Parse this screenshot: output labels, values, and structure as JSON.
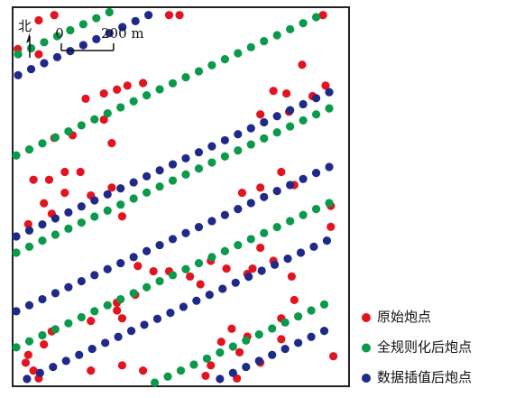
{
  "chart_data": {
    "type": "scatter",
    "north_label": "北",
    "scale_bar_ticks": [
      0,
      {
        "value": 200,
        "label": "200 m"
      }
    ],
    "xlim": [
      0,
      1290
    ],
    "ylim": [
      0,
      1450
    ],
    "series": [
      {
        "name": "原始炮点",
        "color": "#e3141f",
        "points": [
          [
            100,
            1400
          ],
          [
            160,
            1420
          ],
          [
            600,
            1420
          ],
          [
            640,
            1420
          ],
          [
            1190,
            1420
          ],
          [
            20,
            1290
          ],
          [
            100,
            1270
          ],
          [
            280,
            1100
          ],
          [
            350,
            1120
          ],
          [
            400,
            1135
          ],
          [
            440,
            1150
          ],
          [
            500,
            1160
          ],
          [
            160,
            950
          ],
          [
            230,
            960
          ],
          [
            380,
            930
          ],
          [
            350,
            1020
          ],
          [
            1000,
            1130
          ],
          [
            1050,
            1120
          ],
          [
            1150,
            1110
          ],
          [
            1200,
            1150
          ],
          [
            1110,
            1230
          ],
          [
            950,
            1040
          ],
          [
            1060,
            1050
          ],
          [
            80,
            790
          ],
          [
            140,
            790
          ],
          [
            200,
            820
          ],
          [
            260,
            820
          ],
          [
            120,
            700
          ],
          [
            200,
            740
          ],
          [
            300,
            730
          ],
          [
            380,
            760
          ],
          [
            60,
            620
          ],
          [
            150,
            660
          ],
          [
            420,
            650
          ],
          [
            880,
            740
          ],
          [
            950,
            760
          ],
          [
            1030,
            820
          ],
          [
            1080,
            770
          ],
          [
            1220,
            690
          ],
          [
            1220,
            610
          ],
          [
            950,
            530
          ],
          [
            1000,
            480
          ],
          [
            920,
            450
          ],
          [
            900,
            430
          ],
          [
            820,
            450
          ],
          [
            760,
            480
          ],
          [
            720,
            390
          ],
          [
            680,
            420
          ],
          [
            600,
            440
          ],
          [
            540,
            440
          ],
          [
            480,
            460
          ],
          [
            470,
            350
          ],
          [
            400,
            290
          ],
          [
            400,
            320
          ],
          [
            420,
            260
          ],
          [
            300,
            250
          ],
          [
            150,
            210
          ],
          [
            120,
            160
          ],
          [
            60,
            120
          ],
          [
            50,
            90
          ],
          [
            80,
            60
          ],
          [
            100,
            30
          ],
          [
            300,
            60
          ],
          [
            420,
            80
          ],
          [
            500,
            60
          ],
          [
            1070,
            420
          ],
          [
            1080,
            330
          ],
          [
            1030,
            260
          ],
          [
            900,
            190
          ],
          [
            840,
            220
          ],
          [
            800,
            170
          ],
          [
            870,
            130
          ],
          [
            1230,
            115
          ],
          [
            1030,
            180
          ],
          [
            760,
            80
          ],
          [
            740,
            40
          ],
          [
            860,
            30
          ],
          [
            950,
            90
          ]
        ]
      },
      {
        "name": "全规则化后炮点",
        "color": "#0a9a4a",
        "points": [
          [
            21,
            1270
          ],
          [
            71,
            1293
          ],
          [
            121,
            1316
          ],
          [
            171,
            1339
          ],
          [
            221,
            1362
          ],
          [
            271,
            1385
          ],
          [
            321,
            1408
          ],
          [
            371,
            1431
          ],
          [
            14,
            883
          ],
          [
            64,
            906
          ],
          [
            114,
            929
          ],
          [
            164,
            952
          ],
          [
            214,
            975
          ],
          [
            264,
            998
          ],
          [
            314,
            1021
          ],
          [
            364,
            1044
          ],
          [
            414,
            1067
          ],
          [
            464,
            1090
          ],
          [
            514,
            1113
          ],
          [
            564,
            1136
          ],
          [
            614,
            1159
          ],
          [
            664,
            1182
          ],
          [
            714,
            1205
          ],
          [
            764,
            1228
          ],
          [
            814,
            1251
          ],
          [
            864,
            1274
          ],
          [
            914,
            1297
          ],
          [
            964,
            1320
          ],
          [
            1014,
            1343
          ],
          [
            1064,
            1366
          ],
          [
            1114,
            1389
          ],
          [
            1164,
            1412
          ],
          [
            14,
            511
          ],
          [
            64,
            534
          ],
          [
            114,
            557
          ],
          [
            164,
            580
          ],
          [
            214,
            603
          ],
          [
            264,
            626
          ],
          [
            314,
            649
          ],
          [
            364,
            672
          ],
          [
            414,
            695
          ],
          [
            464,
            718
          ],
          [
            514,
            741
          ],
          [
            564,
            764
          ],
          [
            614,
            787
          ],
          [
            664,
            810
          ],
          [
            714,
            833
          ],
          [
            764,
            856
          ],
          [
            814,
            879
          ],
          [
            864,
            902
          ],
          [
            914,
            925
          ],
          [
            964,
            948
          ],
          [
            1014,
            971
          ],
          [
            1064,
            994
          ],
          [
            1114,
            1017
          ],
          [
            1164,
            1040
          ],
          [
            1214,
            1063
          ],
          [
            14,
            149
          ],
          [
            64,
            172
          ],
          [
            114,
            195
          ],
          [
            164,
            218
          ],
          [
            214,
            241
          ],
          [
            264,
            264
          ],
          [
            314,
            287
          ],
          [
            364,
            310
          ],
          [
            414,
            333
          ],
          [
            464,
            356
          ],
          [
            514,
            379
          ],
          [
            564,
            402
          ],
          [
            614,
            425
          ],
          [
            664,
            448
          ],
          [
            714,
            471
          ],
          [
            764,
            494
          ],
          [
            814,
            517
          ],
          [
            864,
            540
          ],
          [
            914,
            563
          ],
          [
            964,
            586
          ],
          [
            1014,
            609
          ],
          [
            1064,
            632
          ],
          [
            1114,
            655
          ],
          [
            1164,
            678
          ],
          [
            1214,
            701
          ],
          [
            545,
            14
          ],
          [
            595,
            37
          ],
          [
            645,
            60
          ],
          [
            695,
            83
          ],
          [
            745,
            106
          ],
          [
            795,
            129
          ],
          [
            845,
            152
          ],
          [
            895,
            175
          ],
          [
            945,
            198
          ],
          [
            995,
            221
          ],
          [
            1045,
            244
          ],
          [
            1095,
            267
          ],
          [
            1145,
            290
          ],
          [
            1195,
            313
          ]
        ]
      },
      {
        "name": "数据插值后炮点",
        "color": "#1f2a88",
        "points": [
          [
            21,
            1190
          ],
          [
            71,
            1213
          ],
          [
            121,
            1236
          ],
          [
            171,
            1259
          ],
          [
            221,
            1282
          ],
          [
            271,
            1305
          ],
          [
            321,
            1328
          ],
          [
            371,
            1351
          ],
          [
            421,
            1374
          ],
          [
            471,
            1397
          ],
          [
            521,
            1420
          ],
          [
            14,
            573
          ],
          [
            64,
            596
          ],
          [
            114,
            619
          ],
          [
            164,
            642
          ],
          [
            214,
            665
          ],
          [
            264,
            688
          ],
          [
            314,
            711
          ],
          [
            364,
            734
          ],
          [
            414,
            757
          ],
          [
            464,
            780
          ],
          [
            514,
            803
          ],
          [
            564,
            826
          ],
          [
            614,
            849
          ],
          [
            664,
            872
          ],
          [
            714,
            895
          ],
          [
            764,
            918
          ],
          [
            814,
            941
          ],
          [
            864,
            964
          ],
          [
            914,
            987
          ],
          [
            964,
            1010
          ],
          [
            1014,
            1033
          ],
          [
            1064,
            1056
          ],
          [
            1114,
            1079
          ],
          [
            1164,
            1102
          ],
          [
            1214,
            1125
          ],
          [
            14,
            287
          ],
          [
            64,
            310
          ],
          [
            114,
            333
          ],
          [
            164,
            356
          ],
          [
            214,
            379
          ],
          [
            264,
            402
          ],
          [
            314,
            425
          ],
          [
            364,
            448
          ],
          [
            414,
            471
          ],
          [
            464,
            494
          ],
          [
            514,
            517
          ],
          [
            564,
            540
          ],
          [
            614,
            563
          ],
          [
            664,
            586
          ],
          [
            714,
            609
          ],
          [
            764,
            632
          ],
          [
            814,
            655
          ],
          [
            864,
            678
          ],
          [
            914,
            701
          ],
          [
            964,
            724
          ],
          [
            1014,
            747
          ],
          [
            1064,
            770
          ],
          [
            1114,
            793
          ],
          [
            1164,
            816
          ],
          [
            1214,
            839
          ],
          [
            55,
            28
          ],
          [
            105,
            51
          ],
          [
            155,
            74
          ],
          [
            205,
            97
          ],
          [
            255,
            120
          ],
          [
            305,
            143
          ],
          [
            355,
            166
          ],
          [
            405,
            189
          ],
          [
            455,
            212
          ],
          [
            505,
            235
          ],
          [
            555,
            258
          ],
          [
            605,
            281
          ],
          [
            655,
            304
          ],
          [
            705,
            327
          ],
          [
            755,
            350
          ],
          [
            805,
            373
          ],
          [
            855,
            396
          ],
          [
            905,
            419
          ],
          [
            955,
            442
          ],
          [
            1005,
            465
          ],
          [
            1055,
            488
          ],
          [
            1105,
            511
          ],
          [
            1155,
            534
          ],
          [
            1205,
            557
          ],
          [
            795,
            28
          ],
          [
            845,
            51
          ],
          [
            895,
            74
          ],
          [
            945,
            97
          ],
          [
            995,
            120
          ],
          [
            1045,
            143
          ],
          [
            1095,
            166
          ],
          [
            1145,
            189
          ],
          [
            1195,
            212
          ]
        ]
      }
    ]
  }
}
